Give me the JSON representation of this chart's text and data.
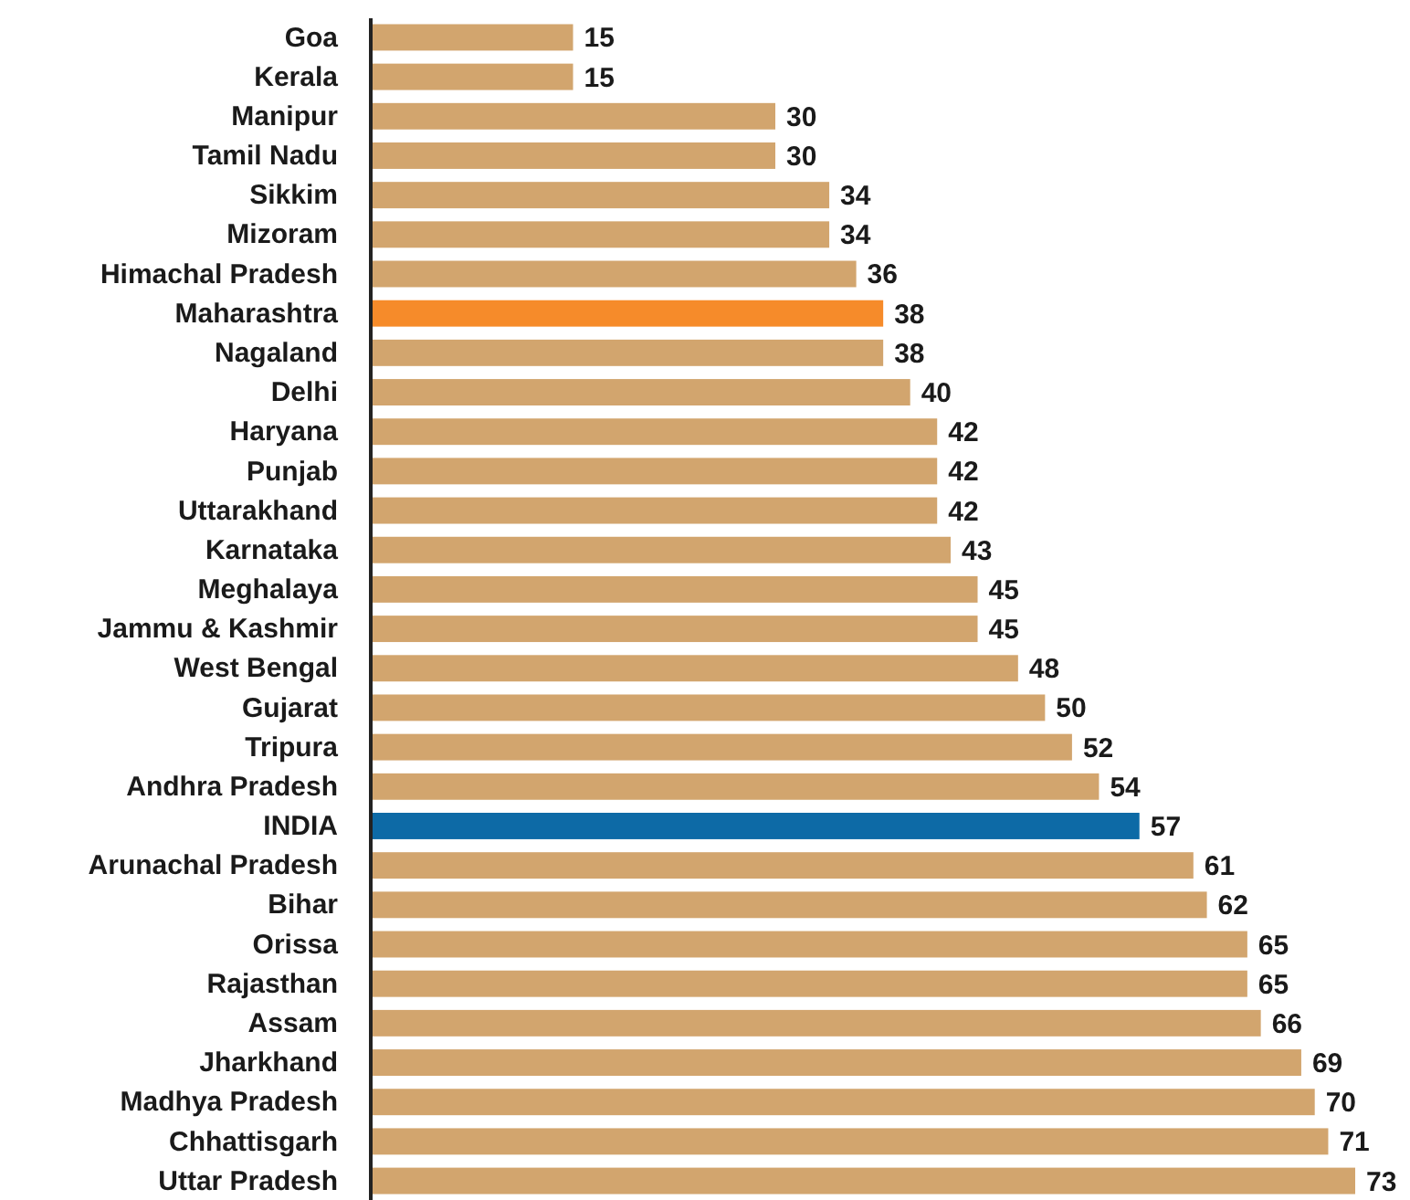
{
  "chart_data": {
    "type": "bar",
    "orientation": "horizontal",
    "data_labels": true,
    "categories": [
      "Goa",
      "Kerala",
      "Manipur",
      "Tamil Nadu",
      "Sikkim",
      "Mizoram",
      "Himachal Pradesh",
      "Maharashtra",
      "Nagaland",
      "Delhi",
      "Haryana",
      "Punjab",
      "Uttarakhand",
      "Karnataka",
      "Meghalaya",
      "Jammu & Kashmir",
      "West Bengal",
      "Gujarat",
      "Tripura",
      "Andhra Pradesh",
      "INDIA",
      "Arunachal Pradesh",
      "Bihar",
      "Orissa",
      "Rajasthan",
      "Assam",
      "Jharkhand",
      "Madhya Pradesh",
      "Chhattisgarh",
      "Uttar Pradesh"
    ],
    "values": [
      15,
      15,
      30,
      30,
      34,
      34,
      36,
      38,
      38,
      40,
      42,
      42,
      42,
      43,
      45,
      45,
      48,
      50,
      52,
      54,
      57,
      61,
      62,
      65,
      65,
      66,
      69,
      70,
      71,
      73
    ],
    "colors": [
      "#d2a56e",
      "#d2a56e",
      "#d2a56e",
      "#d2a56e",
      "#d2a56e",
      "#d2a56e",
      "#d2a56e",
      "#f68b2a",
      "#d2a56e",
      "#d2a56e",
      "#d2a56e",
      "#d2a56e",
      "#d2a56e",
      "#d2a56e",
      "#d2a56e",
      "#d2a56e",
      "#d2a56e",
      "#d2a56e",
      "#d2a56e",
      "#d2a56e",
      "#0d6aa6",
      "#d2a56e",
      "#d2a56e",
      "#d2a56e",
      "#d2a56e",
      "#d2a56e",
      "#d2a56e",
      "#d2a56e",
      "#d2a56e",
      "#d2a56e"
    ]
  }
}
